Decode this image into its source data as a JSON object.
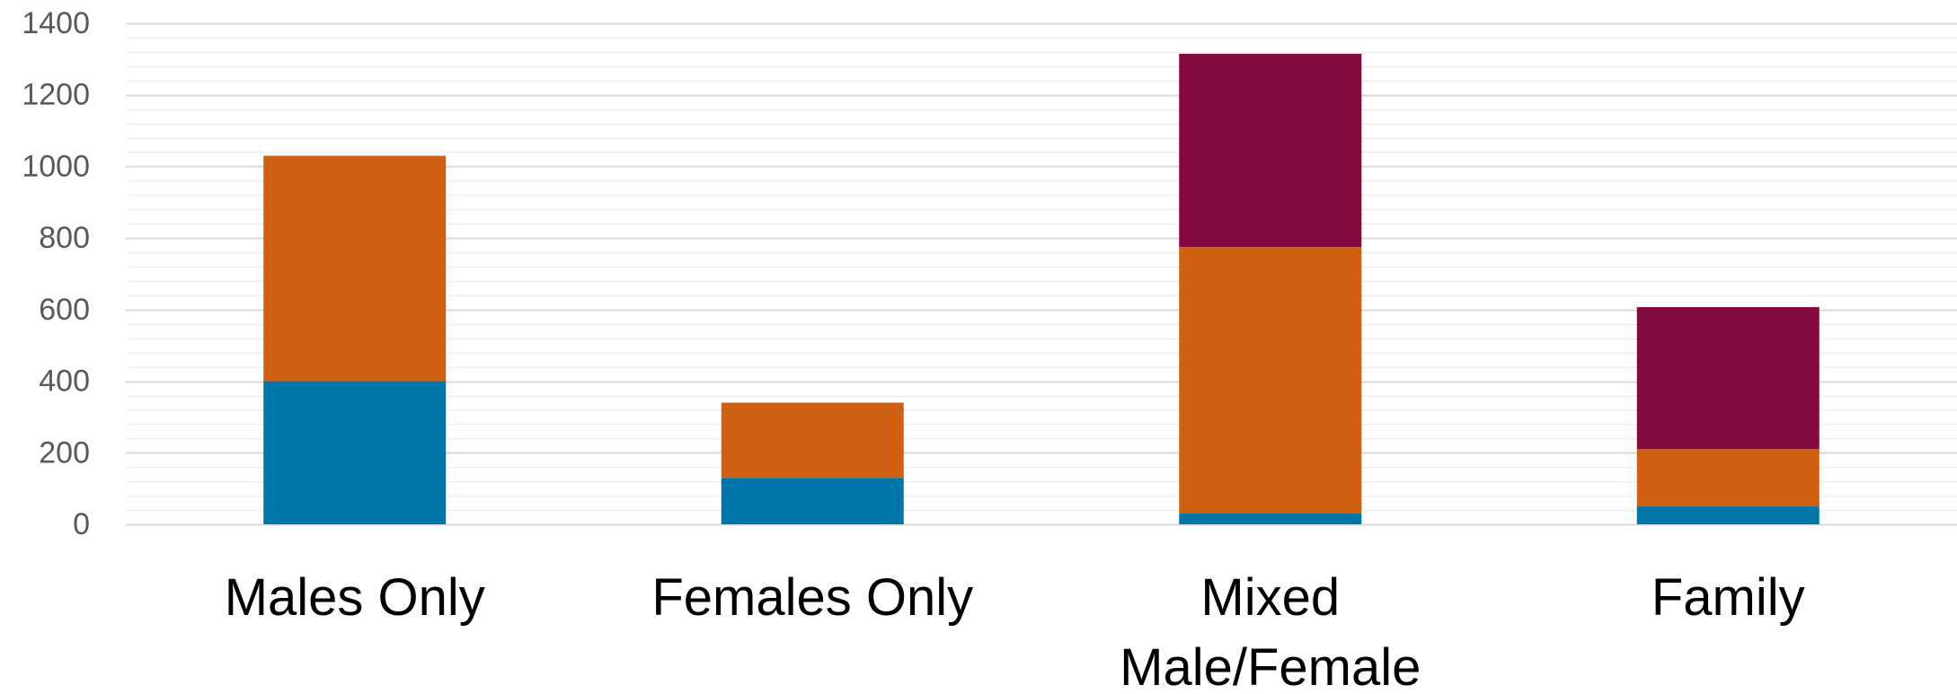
{
  "chart_data": {
    "type": "bar",
    "stacked": true,
    "categories": [
      "Males Only",
      "Females Only",
      "Mixed Male/Female",
      "Family"
    ],
    "category_label_lines": [
      [
        "Males Only"
      ],
      [
        "Females Only"
      ],
      [
        "Mixed",
        "Male/Female"
      ],
      [
        "Family"
      ]
    ],
    "series": [
      {
        "values": [
          400,
          130,
          30,
          50
        ],
        "color": "#0076A8"
      },
      {
        "values": [
          630,
          210,
          745,
          160
        ],
        "color": "#D06011"
      },
      {
        "values": [
          0,
          0,
          540,
          397
        ],
        "color": "#830A3F"
      }
    ],
    "title": "",
    "xlabel": "",
    "ylabel": "",
    "ylim": [
      0,
      1400
    ],
    "yticks": [
      0,
      200,
      400,
      600,
      800,
      1000,
      1200,
      1400
    ],
    "grid": true,
    "minor_grid": true,
    "legend": "none",
    "colors": {
      "major_grid": "#d9d9d9",
      "minor_grid": "#eeeeee",
      "tick_text": "#595959",
      "category_text": "#000000"
    }
  }
}
